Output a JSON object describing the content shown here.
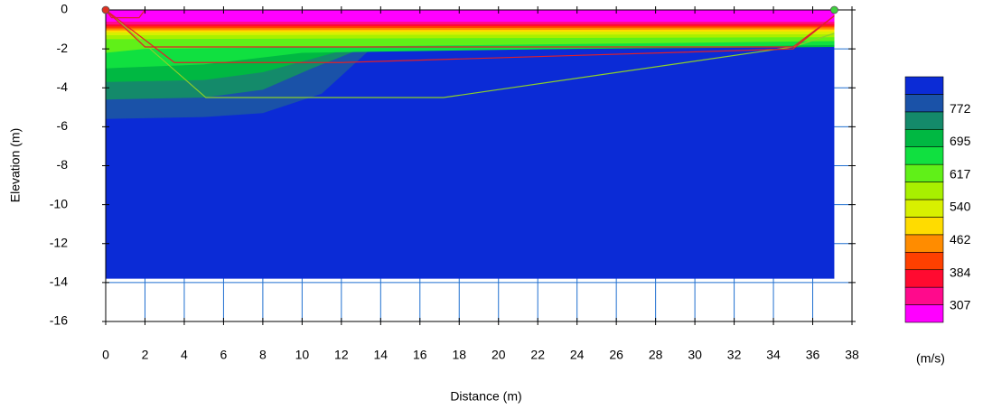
{
  "chart_data": {
    "type": "contour",
    "xlabel": "Distance (m)",
    "ylabel": "Elevation (m)",
    "xlim": [
      0,
      38
    ],
    "ylim": [
      -16,
      0
    ],
    "xticks": [
      0,
      2,
      4,
      6,
      8,
      10,
      12,
      14,
      16,
      18,
      20,
      22,
      24,
      26,
      28,
      30,
      32,
      34,
      36,
      38
    ],
    "yticks": [
      -16,
      -14,
      -12,
      -10,
      -8,
      -6,
      -4,
      -2,
      0
    ],
    "grid": true,
    "grid_color": "#1f6fd0",
    "colorbar": {
      "label": "(m/s)",
      "clim": [
        268,
        850
      ],
      "colors": [
        "#ff00ff",
        "#ff0a8c",
        "#ff0a30",
        "#ff4000",
        "#ff8c00",
        "#ffdc00",
        "#d8f000",
        "#a8f000",
        "#60f018",
        "#10e040",
        "#00b842",
        "#148a6a",
        "#1a52a8",
        "#0b2bd6"
      ],
      "ticks": [
        307,
        384,
        462,
        540,
        617,
        695,
        772
      ]
    },
    "layers": [
      {
        "velocity": 830,
        "x": [
          0,
          37.1
        ],
        "y": [
          -13.8,
          -13.8
        ]
      },
      {
        "velocity": 790,
        "x": [
          0,
          5,
          8,
          11,
          13.5,
          37.1
        ],
        "y": [
          -5.6,
          -5.5,
          -5.3,
          -4.3,
          -2.0,
          -1.9
        ]
      },
      {
        "velocity": 750,
        "x": [
          0,
          5,
          8,
          10.5,
          13,
          37.1
        ],
        "y": [
          -4.6,
          -4.5,
          -4.1,
          -3.0,
          -2.0,
          -1.9
        ]
      },
      {
        "velocity": 710,
        "x": [
          0,
          5,
          8,
          12,
          37.1
        ],
        "y": [
          -3.7,
          -3.6,
          -3.2,
          -2.1,
          -1.9
        ]
      },
      {
        "velocity": 665,
        "x": [
          0,
          5,
          10,
          37.1
        ],
        "y": [
          -3.0,
          -2.8,
          -2.2,
          -1.8
        ]
      },
      {
        "velocity": 625,
        "x": [
          0,
          2,
          37.1
        ],
        "y": [
          -2.2,
          -2.0,
          -1.6
        ]
      },
      {
        "velocity": 580,
        "x": [
          0,
          37.1
        ],
        "y": [
          -1.5,
          -1.4
        ]
      },
      {
        "velocity": 540,
        "x": [
          0,
          37.1
        ],
        "y": [
          -1.3,
          -1.25
        ]
      },
      {
        "velocity": 500,
        "x": [
          0,
          37.1
        ],
        "y": [
          -1.15,
          -1.1
        ]
      },
      {
        "velocity": 455,
        "x": [
          0,
          37.1
        ],
        "y": [
          -1.05,
          -1.0
        ]
      },
      {
        "velocity": 415,
        "x": [
          0,
          37.1
        ],
        "y": [
          -0.95,
          -0.9
        ]
      },
      {
        "velocity": 375,
        "x": [
          0,
          37.1
        ],
        "y": [
          -0.85,
          -0.82
        ]
      },
      {
        "velocity": 330,
        "x": [
          0,
          37.1
        ],
        "y": [
          -0.75,
          -0.72
        ]
      },
      {
        "velocity": 290,
        "x": [
          0,
          37.1
        ],
        "y": [
          -0.6,
          -0.6
        ]
      }
    ],
    "lines": [
      {
        "color": "#8ccf2a",
        "x": [
          0,
          5.1,
          17.2,
          35,
          37.1
        ],
        "y": [
          0,
          -4.5,
          -4.5,
          -1.9,
          -1.2
        ]
      },
      {
        "color": "#e0202a",
        "x": [
          0,
          3.5,
          12,
          35,
          37.1
        ],
        "y": [
          0,
          -2.7,
          -2.7,
          -2.0,
          -0.3
        ]
      },
      {
        "color": "#e0202a",
        "x": [
          0,
          2,
          35,
          37.1
        ],
        "y": [
          0,
          -1.9,
          -1.9,
          -0.3
        ]
      },
      {
        "color": "#e0202a",
        "x": [
          0,
          0.3,
          1.7,
          2
        ],
        "y": [
          0,
          -0.4,
          -0.4,
          0
        ]
      }
    ],
    "points": [
      {
        "color": "#e03020",
        "x": 0,
        "y": 0
      },
      {
        "color": "#40d040",
        "x": 37.1,
        "y": 0
      }
    ]
  }
}
